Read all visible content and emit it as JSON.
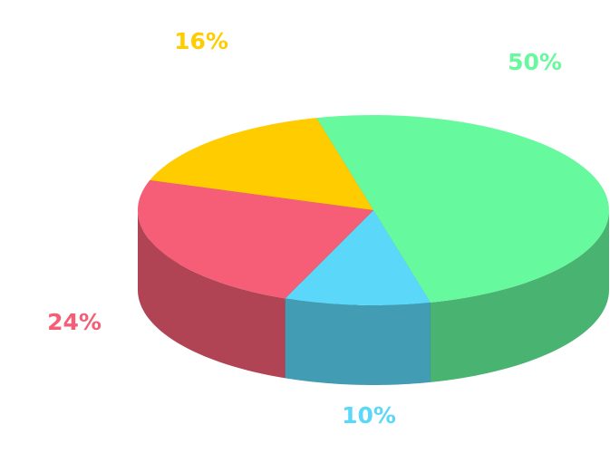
{
  "chart_data": {
    "type": "pie3d",
    "categories": [
      null,
      null,
      null,
      null
    ],
    "values": [
      50,
      10,
      24,
      16
    ],
    "value_labels": [
      "50%",
      "10%",
      "24%",
      "16%"
    ],
    "colors": [
      "#66f99d",
      "#5bd8f9",
      "#f55e76",
      "#ffcc00"
    ]
  }
}
